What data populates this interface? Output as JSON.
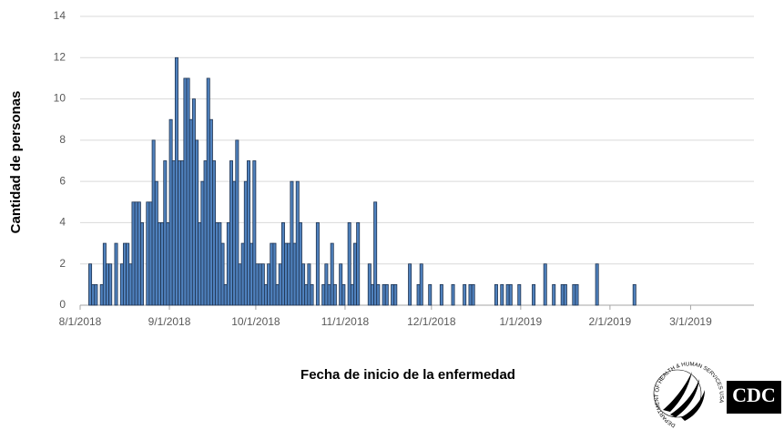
{
  "chart_data": {
    "type": "bar",
    "x_label": "Fecha de inicio de la enfermedad",
    "y_label": "Cantidad de personas",
    "color": "#4f81bd",
    "edge_color": "#1f3350",
    "grid": true,
    "xlim": [
      "8/1/2018",
      "3/23/2019"
    ],
    "xticks": [
      "8/1/2018",
      "9/1/2018",
      "10/1/2018",
      "11/1/2018",
      "12/1/2018",
      "1/1/2019",
      "2/1/2019",
      "3/1/2019"
    ],
    "ylim": [
      0,
      14
    ],
    "yticks": [
      0,
      2,
      4,
      6,
      8,
      10,
      12,
      14
    ],
    "x": [
      "8/4/2018",
      "8/5/2018",
      "8/6/2018",
      "8/8/2018",
      "8/9/2018",
      "8/10/2018",
      "8/11/2018",
      "8/13/2018",
      "8/15/2018",
      "8/16/2018",
      "8/17/2018",
      "8/18/2018",
      "8/19/2018",
      "8/20/2018",
      "8/21/2018",
      "8/22/2018",
      "8/24/2018",
      "8/25/2018",
      "8/26/2018",
      "8/27/2018",
      "8/28/2018",
      "8/29/2018",
      "8/30/2018",
      "8/31/2018",
      "9/1/2018",
      "9/2/2018",
      "9/3/2018",
      "9/4/2018",
      "9/5/2018",
      "9/6/2018",
      "9/7/2018",
      "9/8/2018",
      "9/9/2018",
      "9/10/2018",
      "9/11/2018",
      "9/12/2018",
      "9/13/2018",
      "9/14/2018",
      "9/15/2018",
      "9/16/2018",
      "9/17/2018",
      "9/18/2018",
      "9/19/2018",
      "9/20/2018",
      "9/21/2018",
      "9/22/2018",
      "9/23/2018",
      "9/24/2018",
      "9/25/2018",
      "9/26/2018",
      "9/27/2018",
      "9/28/2018",
      "9/29/2018",
      "9/30/2018",
      "10/1/2018",
      "10/2/2018",
      "10/3/2018",
      "10/4/2018",
      "10/5/2018",
      "10/6/2018",
      "10/7/2018",
      "10/8/2018",
      "10/9/2018",
      "10/10/2018",
      "10/11/2018",
      "10/12/2018",
      "10/13/2018",
      "10/14/2018",
      "10/15/2018",
      "10/16/2018",
      "10/17/2018",
      "10/18/2018",
      "10/19/2018",
      "10/20/2018",
      "10/22/2018",
      "10/24/2018",
      "10/25/2018",
      "10/26/2018",
      "10/27/2018",
      "10/28/2018",
      "10/30/2018",
      "10/31/2018",
      "11/2/2018",
      "11/3/2018",
      "11/4/2018",
      "11/5/2018",
      "11/9/2018",
      "11/10/2018",
      "11/11/2018",
      "11/12/2018",
      "11/14/2018",
      "11/15/2018",
      "11/17/2018",
      "11/18/2018",
      "11/23/2018",
      "11/26/2018",
      "11/27/2018",
      "11/30/2018",
      "12/4/2018",
      "12/8/2018",
      "12/12/2018",
      "12/14/2018",
      "12/15/2018",
      "12/23/2018",
      "12/25/2018",
      "12/27/2018",
      "12/28/2018",
      "12/31/2018",
      "1/5/2019",
      "1/9/2019",
      "1/12/2019",
      "1/15/2019",
      "1/16/2019",
      "1/19/2019",
      "1/20/2019",
      "1/27/2019",
      "2/9/2019"
    ],
    "values": [
      2,
      1,
      1,
      1,
      3,
      2,
      2,
      3,
      2,
      3,
      3,
      2,
      5,
      5,
      5,
      4,
      5,
      5,
      8,
      6,
      4,
      4,
      7,
      4,
      9,
      7,
      12,
      7,
      7,
      11,
      11,
      9,
      10,
      8,
      4,
      6,
      7,
      11,
      9,
      7,
      4,
      4,
      3,
      1,
      4,
      7,
      6,
      8,
      2,
      3,
      6,
      7,
      3,
      7,
      2,
      2,
      2,
      1,
      2,
      3,
      3,
      1,
      2,
      4,
      3,
      3,
      6,
      3,
      6,
      4,
      2,
      1,
      2,
      1,
      4,
      1,
      2,
      1,
      3,
      1,
      2,
      1,
      4,
      1,
      3,
      4,
      2,
      1,
      5,
      1,
      1,
      1,
      1,
      1,
      2,
      1,
      2,
      1,
      1,
      1,
      1,
      1,
      1,
      1,
      1,
      1,
      1,
      1,
      1,
      2,
      1,
      1,
      1,
      1,
      1,
      2,
      1
    ]
  },
  "logos": {
    "hhs_ring": "DEPARTMENT OF HEALTH & HUMAN SERVICES USA",
    "cdc": "CDC"
  }
}
